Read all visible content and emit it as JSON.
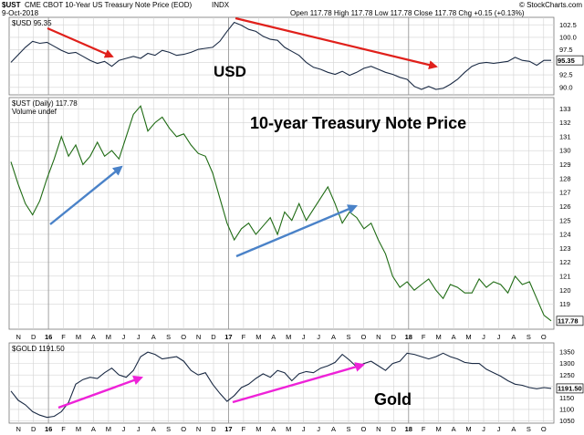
{
  "header": {
    "symbol": "$UST",
    "description": "CME CBOT 10-Year US Treasury Note Price (EOD)",
    "exchange": "INDX",
    "date": "9-Oct-2018",
    "ohlc": "Open 117.78  High 117.78  Low 117.78  Close 117.78  Chg +0.15 (+0.13%)",
    "credit": "© StockCharts.com"
  },
  "colors": {
    "usd": "#1a2a44",
    "ust": "#1f6b14",
    "gold": "#1a2a44",
    "red_arrow": "#e0201b",
    "blue_arrow": "#4a82c8",
    "pink_arrow": "#ee22d8",
    "grid": "#d3d3d3"
  },
  "chart_data": [
    {
      "type": "line",
      "legend": "$USD 95.35",
      "annotation": "USD",
      "last_value_badge": "95.35",
      "ylim": [
        88.5,
        104
      ],
      "yticks": [
        "90.0",
        "92.5",
        "95.0",
        "97.5",
        "100.0",
        "102.5"
      ],
      "series": [
        {
          "name": "$USD",
          "values": [
            95.0,
            96.5,
            98.0,
            99.2,
            98.8,
            99.0,
            98.2,
            97.4,
            96.8,
            97.0,
            96.2,
            95.4,
            94.8,
            95.2,
            94.2,
            95.4,
            95.8,
            96.2,
            95.8,
            96.8,
            96.4,
            97.4,
            97.0,
            96.4,
            96.6,
            97.0,
            97.6,
            97.8,
            98.0,
            99.2,
            101.2,
            103.0,
            102.4,
            101.6,
            101.2,
            100.2,
            99.6,
            99.4,
            98.0,
            97.2,
            96.4,
            95.0,
            94.0,
            93.6,
            93.0,
            92.6,
            93.2,
            92.4,
            93.0,
            93.8,
            94.2,
            93.6,
            93.0,
            92.6,
            92.0,
            91.6,
            90.2,
            89.6,
            90.2,
            89.6,
            89.8,
            90.6,
            91.6,
            93.0,
            94.2,
            94.8,
            95.0,
            94.8,
            95.0,
            95.2,
            96.0,
            95.4,
            95.2,
            94.4,
            95.4,
            95.4
          ]
        }
      ]
    },
    {
      "type": "line",
      "legend": "$UST (Daily) 117.78",
      "legend_sub": "Volume undef",
      "annotation": "10-year Treasury Note Price",
      "last_value_badge": "117.78",
      "ylim": [
        117.2,
        133.8
      ],
      "yticks": [
        "119",
        "120",
        "121",
        "122",
        "123",
        "124",
        "125",
        "126",
        "127",
        "128",
        "129",
        "130",
        "131",
        "132",
        "133"
      ],
      "series": [
        {
          "name": "$UST",
          "values": [
            129.2,
            127.6,
            126.2,
            125.4,
            126.4,
            128.0,
            129.4,
            131.0,
            129.6,
            130.4,
            129.0,
            129.6,
            130.6,
            129.6,
            130.0,
            129.4,
            131.0,
            132.6,
            133.2,
            131.4,
            132.0,
            132.4,
            131.6,
            131.0,
            131.2,
            130.4,
            129.8,
            129.6,
            128.4,
            126.6,
            124.8,
            123.6,
            124.4,
            124.8,
            124.0,
            124.6,
            125.2,
            124.0,
            125.6,
            125.0,
            126.2,
            125.0,
            125.8,
            126.6,
            127.4,
            126.2,
            124.8,
            125.6,
            125.2,
            124.4,
            124.8,
            123.6,
            122.6,
            121.0,
            120.2,
            120.6,
            120.0,
            120.4,
            120.8,
            120.0,
            119.4,
            120.4,
            120.2,
            119.8,
            119.8,
            120.8,
            120.2,
            120.6,
            120.4,
            119.8,
            121.0,
            120.4,
            120.6,
            119.4,
            118.2,
            117.8
          ]
        }
      ]
    },
    {
      "type": "line",
      "legend": "$GOLD 1191.50",
      "annotation": "Gold",
      "last_value_badge": "1191.50",
      "ylim": [
        1040,
        1390
      ],
      "yticks": [
        "1050",
        "1100",
        "1150",
        "1200",
        "1250",
        "1300",
        "1350"
      ],
      "series": [
        {
          "name": "$GOLD",
          "values": [
            1180,
            1140,
            1120,
            1090,
            1075,
            1065,
            1070,
            1090,
            1130,
            1210,
            1230,
            1240,
            1235,
            1260,
            1280,
            1250,
            1240,
            1270,
            1330,
            1350,
            1340,
            1320,
            1325,
            1330,
            1310,
            1270,
            1250,
            1260,
            1210,
            1170,
            1135,
            1160,
            1195,
            1210,
            1235,
            1255,
            1240,
            1270,
            1260,
            1225,
            1255,
            1265,
            1260,
            1280,
            1290,
            1305,
            1340,
            1315,
            1285,
            1300,
            1310,
            1290,
            1270,
            1300,
            1310,
            1345,
            1340,
            1330,
            1320,
            1330,
            1345,
            1330,
            1320,
            1305,
            1300,
            1300,
            1275,
            1260,
            1245,
            1225,
            1210,
            1205,
            1195,
            1190,
            1195,
            1191.5
          ]
        }
      ]
    }
  ],
  "x_axis": {
    "labels": [
      "N",
      "D",
      "16",
      "F",
      "M",
      "A",
      "M",
      "J",
      "J",
      "A",
      "S",
      "O",
      "N",
      "D",
      "17",
      "F",
      "M",
      "A",
      "M",
      "J",
      "J",
      "A",
      "S",
      "O",
      "N",
      "D",
      "18",
      "F",
      "M",
      "A",
      "M",
      "J",
      "J",
      "A",
      "S",
      "O"
    ],
    "year_labels": [
      "16",
      "17",
      "18"
    ]
  }
}
